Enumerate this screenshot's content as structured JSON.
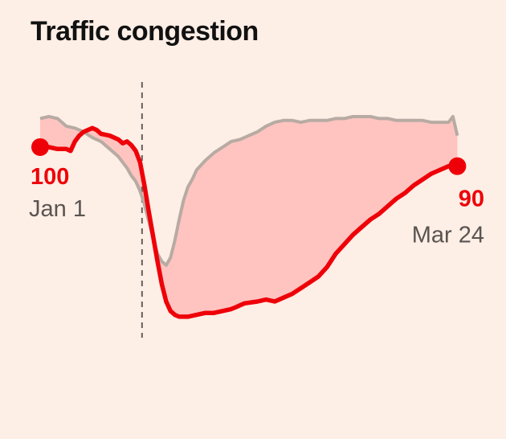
{
  "title": "Traffic congestion",
  "colors": {
    "background": "#fdeee6",
    "current": "#ee0008",
    "baseline": "#b7aba3",
    "fill": "#ffc4c0",
    "divider": "#66605c",
    "text": "#111111",
    "muted": "#5a5450"
  },
  "chart_data": {
    "type": "area",
    "title": "Traffic congestion",
    "x_start_label": "Jan 1",
    "x_end_label": "Mar 24",
    "ylim": [
      0,
      135
    ],
    "x_range": [
      0,
      100
    ],
    "marker_x": 24,
    "series": [
      {
        "key": "current",
        "points": [
          [
            0,
            100
          ],
          [
            2,
            100
          ],
          [
            4,
            99
          ],
          [
            6,
            99
          ],
          [
            7,
            98
          ],
          [
            8,
            103
          ],
          [
            9,
            106
          ],
          [
            10,
            108
          ],
          [
            12,
            110
          ],
          [
            13,
            109
          ],
          [
            14,
            107
          ],
          [
            16,
            106
          ],
          [
            18,
            104
          ],
          [
            19,
            102
          ],
          [
            20,
            103
          ],
          [
            21,
            101
          ],
          [
            22,
            98
          ],
          [
            23,
            92
          ],
          [
            24,
            80
          ],
          [
            25,
            66
          ],
          [
            26,
            53
          ],
          [
            27,
            40
          ],
          [
            28,
            28
          ],
          [
            29,
            19
          ],
          [
            30,
            14
          ],
          [
            31,
            12
          ],
          [
            32,
            11
          ],
          [
            34,
            11
          ],
          [
            36,
            12
          ],
          [
            38,
            13
          ],
          [
            40,
            13
          ],
          [
            42,
            14
          ],
          [
            44,
            15
          ],
          [
            45,
            16
          ],
          [
            47,
            18
          ],
          [
            50,
            19
          ],
          [
            52,
            20
          ],
          [
            54,
            19
          ],
          [
            56,
            21
          ],
          [
            58,
            23
          ],
          [
            60,
            26
          ],
          [
            62,
            29
          ],
          [
            64,
            32
          ],
          [
            66,
            37
          ],
          [
            68,
            44
          ],
          [
            70,
            49
          ],
          [
            72,
            54
          ],
          [
            74,
            58
          ],
          [
            76,
            62
          ],
          [
            78,
            65
          ],
          [
            80,
            69
          ],
          [
            82,
            73
          ],
          [
            84,
            76
          ],
          [
            86,
            80
          ],
          [
            88,
            83
          ],
          [
            90,
            86
          ],
          [
            92,
            88
          ],
          [
            94,
            90
          ],
          [
            96,
            90
          ]
        ]
      },
      {
        "key": "baseline",
        "points": [
          [
            0,
            115
          ],
          [
            2,
            116
          ],
          [
            4,
            115
          ],
          [
            6,
            111
          ],
          [
            8,
            110
          ],
          [
            10,
            108
          ],
          [
            12,
            105
          ],
          [
            14,
            103
          ],
          [
            16,
            99
          ],
          [
            18,
            95
          ],
          [
            20,
            89
          ],
          [
            21,
            85
          ],
          [
            22,
            82
          ],
          [
            23,
            77
          ],
          [
            24,
            70
          ],
          [
            25,
            61
          ],
          [
            26,
            52
          ],
          [
            27,
            44
          ],
          [
            28,
            40
          ],
          [
            29,
            38
          ],
          [
            30,
            42
          ],
          [
            31,
            51
          ],
          [
            32,
            62
          ],
          [
            33,
            72
          ],
          [
            34,
            79
          ],
          [
            35,
            83
          ],
          [
            36,
            88
          ],
          [
            38,
            93
          ],
          [
            40,
            97
          ],
          [
            42,
            100
          ],
          [
            44,
            103
          ],
          [
            46,
            104
          ],
          [
            48,
            106
          ],
          [
            50,
            108
          ],
          [
            52,
            111
          ],
          [
            54,
            113
          ],
          [
            56,
            114
          ],
          [
            58,
            114
          ],
          [
            60,
            113
          ],
          [
            62,
            114
          ],
          [
            64,
            114
          ],
          [
            66,
            114
          ],
          [
            68,
            115
          ],
          [
            70,
            115
          ],
          [
            72,
            116
          ],
          [
            74,
            116
          ],
          [
            76,
            116
          ],
          [
            78,
            115
          ],
          [
            80,
            115
          ],
          [
            82,
            114
          ],
          [
            84,
            114
          ],
          [
            86,
            114
          ],
          [
            88,
            114
          ],
          [
            90,
            113
          ],
          [
            92,
            113
          ],
          [
            94,
            113
          ],
          [
            95,
            116
          ],
          [
            96,
            106
          ]
        ]
      }
    ],
    "start_value": "100",
    "end_value": "90"
  }
}
